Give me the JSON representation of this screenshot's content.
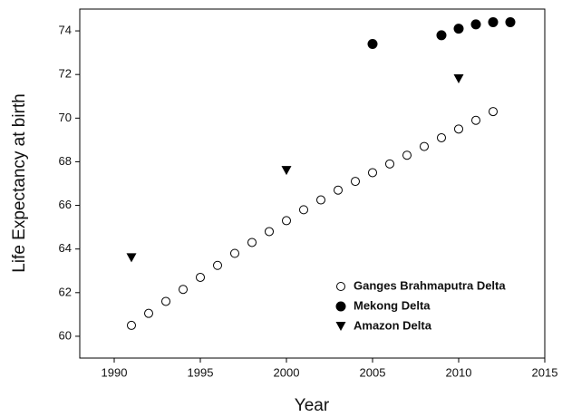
{
  "chart_data": {
    "type": "scatter",
    "xlabel": "Year",
    "ylabel": "Life Expectancy at birth",
    "xlim": [
      1988,
      2015
    ],
    "xticks": [
      1990,
      1995,
      2000,
      2005,
      2010,
      2015
    ],
    "ylim": [
      59,
      75
    ],
    "yticks": [
      60,
      62,
      64,
      66,
      68,
      70,
      72,
      74
    ],
    "grid": false,
    "legend": "lower right",
    "series": [
      {
        "name": "Ganges Brahmaputra Delta",
        "color": "#000000",
        "marker": "open-circle",
        "x": [
          1991,
          1992,
          1993,
          1994,
          1995,
          1996,
          1997,
          1998,
          1999,
          2000,
          2001,
          2002,
          2003,
          2004,
          2005,
          2006,
          2007,
          2008,
          2009,
          2010,
          2011,
          2012
        ],
        "values": [
          60.5,
          61.05,
          61.6,
          62.15,
          62.7,
          63.25,
          63.8,
          64.3,
          64.8,
          65.3,
          65.8,
          66.25,
          66.7,
          67.1,
          67.5,
          67.9,
          68.3,
          68.7,
          69.1,
          69.5,
          69.9,
          70.3
        ]
      },
      {
        "name": "Mekong Delta",
        "color": "#000000",
        "marker": "circle",
        "x": [
          2005,
          2009,
          2010,
          2011,
          2012,
          2013
        ],
        "values": [
          73.4,
          73.8,
          74.1,
          74.3,
          74.4,
          74.4
        ]
      },
      {
        "name": "Amazon Delta",
        "color": "#000000",
        "marker": "triangle-down",
        "x": [
          1991,
          2000,
          2010
        ],
        "values": [
          63.6,
          67.6,
          71.8
        ]
      }
    ]
  }
}
